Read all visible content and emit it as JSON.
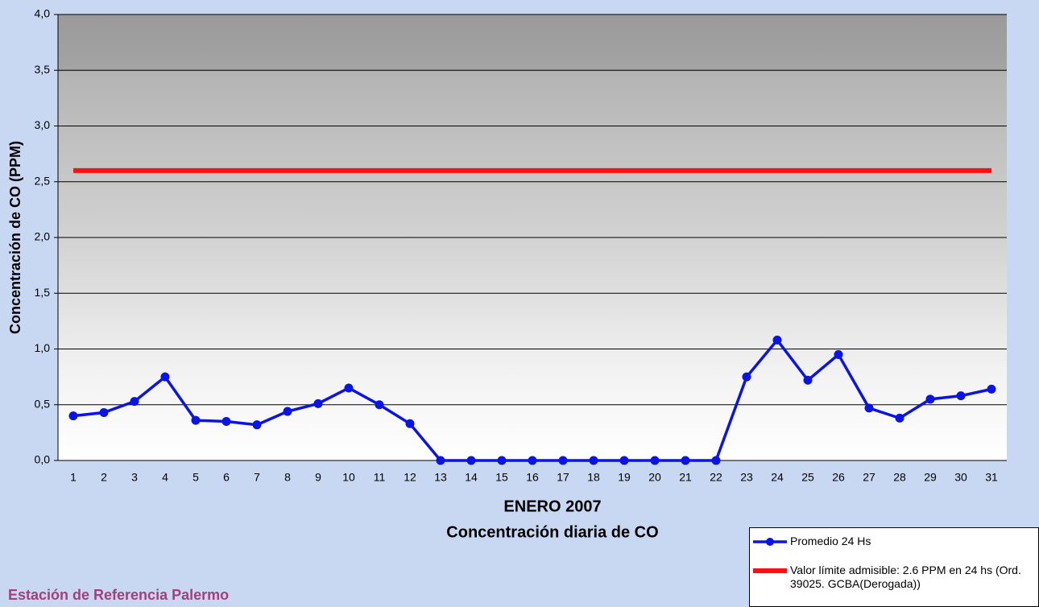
{
  "chart_data": {
    "type": "line",
    "title": "Concentración diaria de CO",
    "xlabel": "ENERO 2007",
    "ylabel": "Concentración de CO (PPM)",
    "footnote": "Estación de Referencia Palermo",
    "categories": [
      "1",
      "2",
      "3",
      "4",
      "5",
      "6",
      "7",
      "8",
      "9",
      "10",
      "11",
      "12",
      "13",
      "14",
      "15",
      "16",
      "17",
      "18",
      "19",
      "20",
      "21",
      "22",
      "23",
      "24",
      "25",
      "26",
      "27",
      "28",
      "29",
      "30",
      "31"
    ],
    "series": [
      {
        "name": "Promedio 24 Hs",
        "color": "#0a14e6",
        "markers": true,
        "values": [
          0.4,
          0.43,
          0.53,
          0.75,
          0.36,
          0.35,
          0.32,
          0.44,
          0.51,
          0.65,
          0.5,
          0.33,
          0,
          0,
          0,
          0,
          0,
          0,
          0,
          0,
          0,
          0,
          0.75,
          1.08,
          0.72,
          0.95,
          0.47,
          0.38,
          0.55,
          0.58,
          0.64
        ]
      },
      {
        "name": "Valor límite admisible: 2.6 PPM en 24 hs (Ord. 39025. GCBA(Derogada))",
        "color": "#ff1010",
        "markers": false,
        "values": [
          2.6,
          2.6,
          2.6,
          2.6,
          2.6,
          2.6,
          2.6,
          2.6,
          2.6,
          2.6,
          2.6,
          2.6,
          2.6,
          2.6,
          2.6,
          2.6,
          2.6,
          2.6,
          2.6,
          2.6,
          2.6,
          2.6,
          2.6,
          2.6,
          2.6,
          2.6,
          2.6,
          2.6,
          2.6,
          2.6,
          2.6
        ]
      }
    ],
    "ylim": [
      0,
      4
    ],
    "yticks": [
      {
        "value": 0,
        "label": "0,0"
      },
      {
        "value": 0.5,
        "label": "0,5"
      },
      {
        "value": 1,
        "label": "1,0"
      },
      {
        "value": 1.5,
        "label": "1,5"
      },
      {
        "value": 2,
        "label": "2,0"
      },
      {
        "value": 2.5,
        "label": "2,5"
      },
      {
        "value": 3,
        "label": "3,0"
      },
      {
        "value": 3.5,
        "label": "3,5"
      },
      {
        "value": 4,
        "label": "4,0"
      }
    ],
    "grid": true,
    "legend": "bottom-right"
  }
}
